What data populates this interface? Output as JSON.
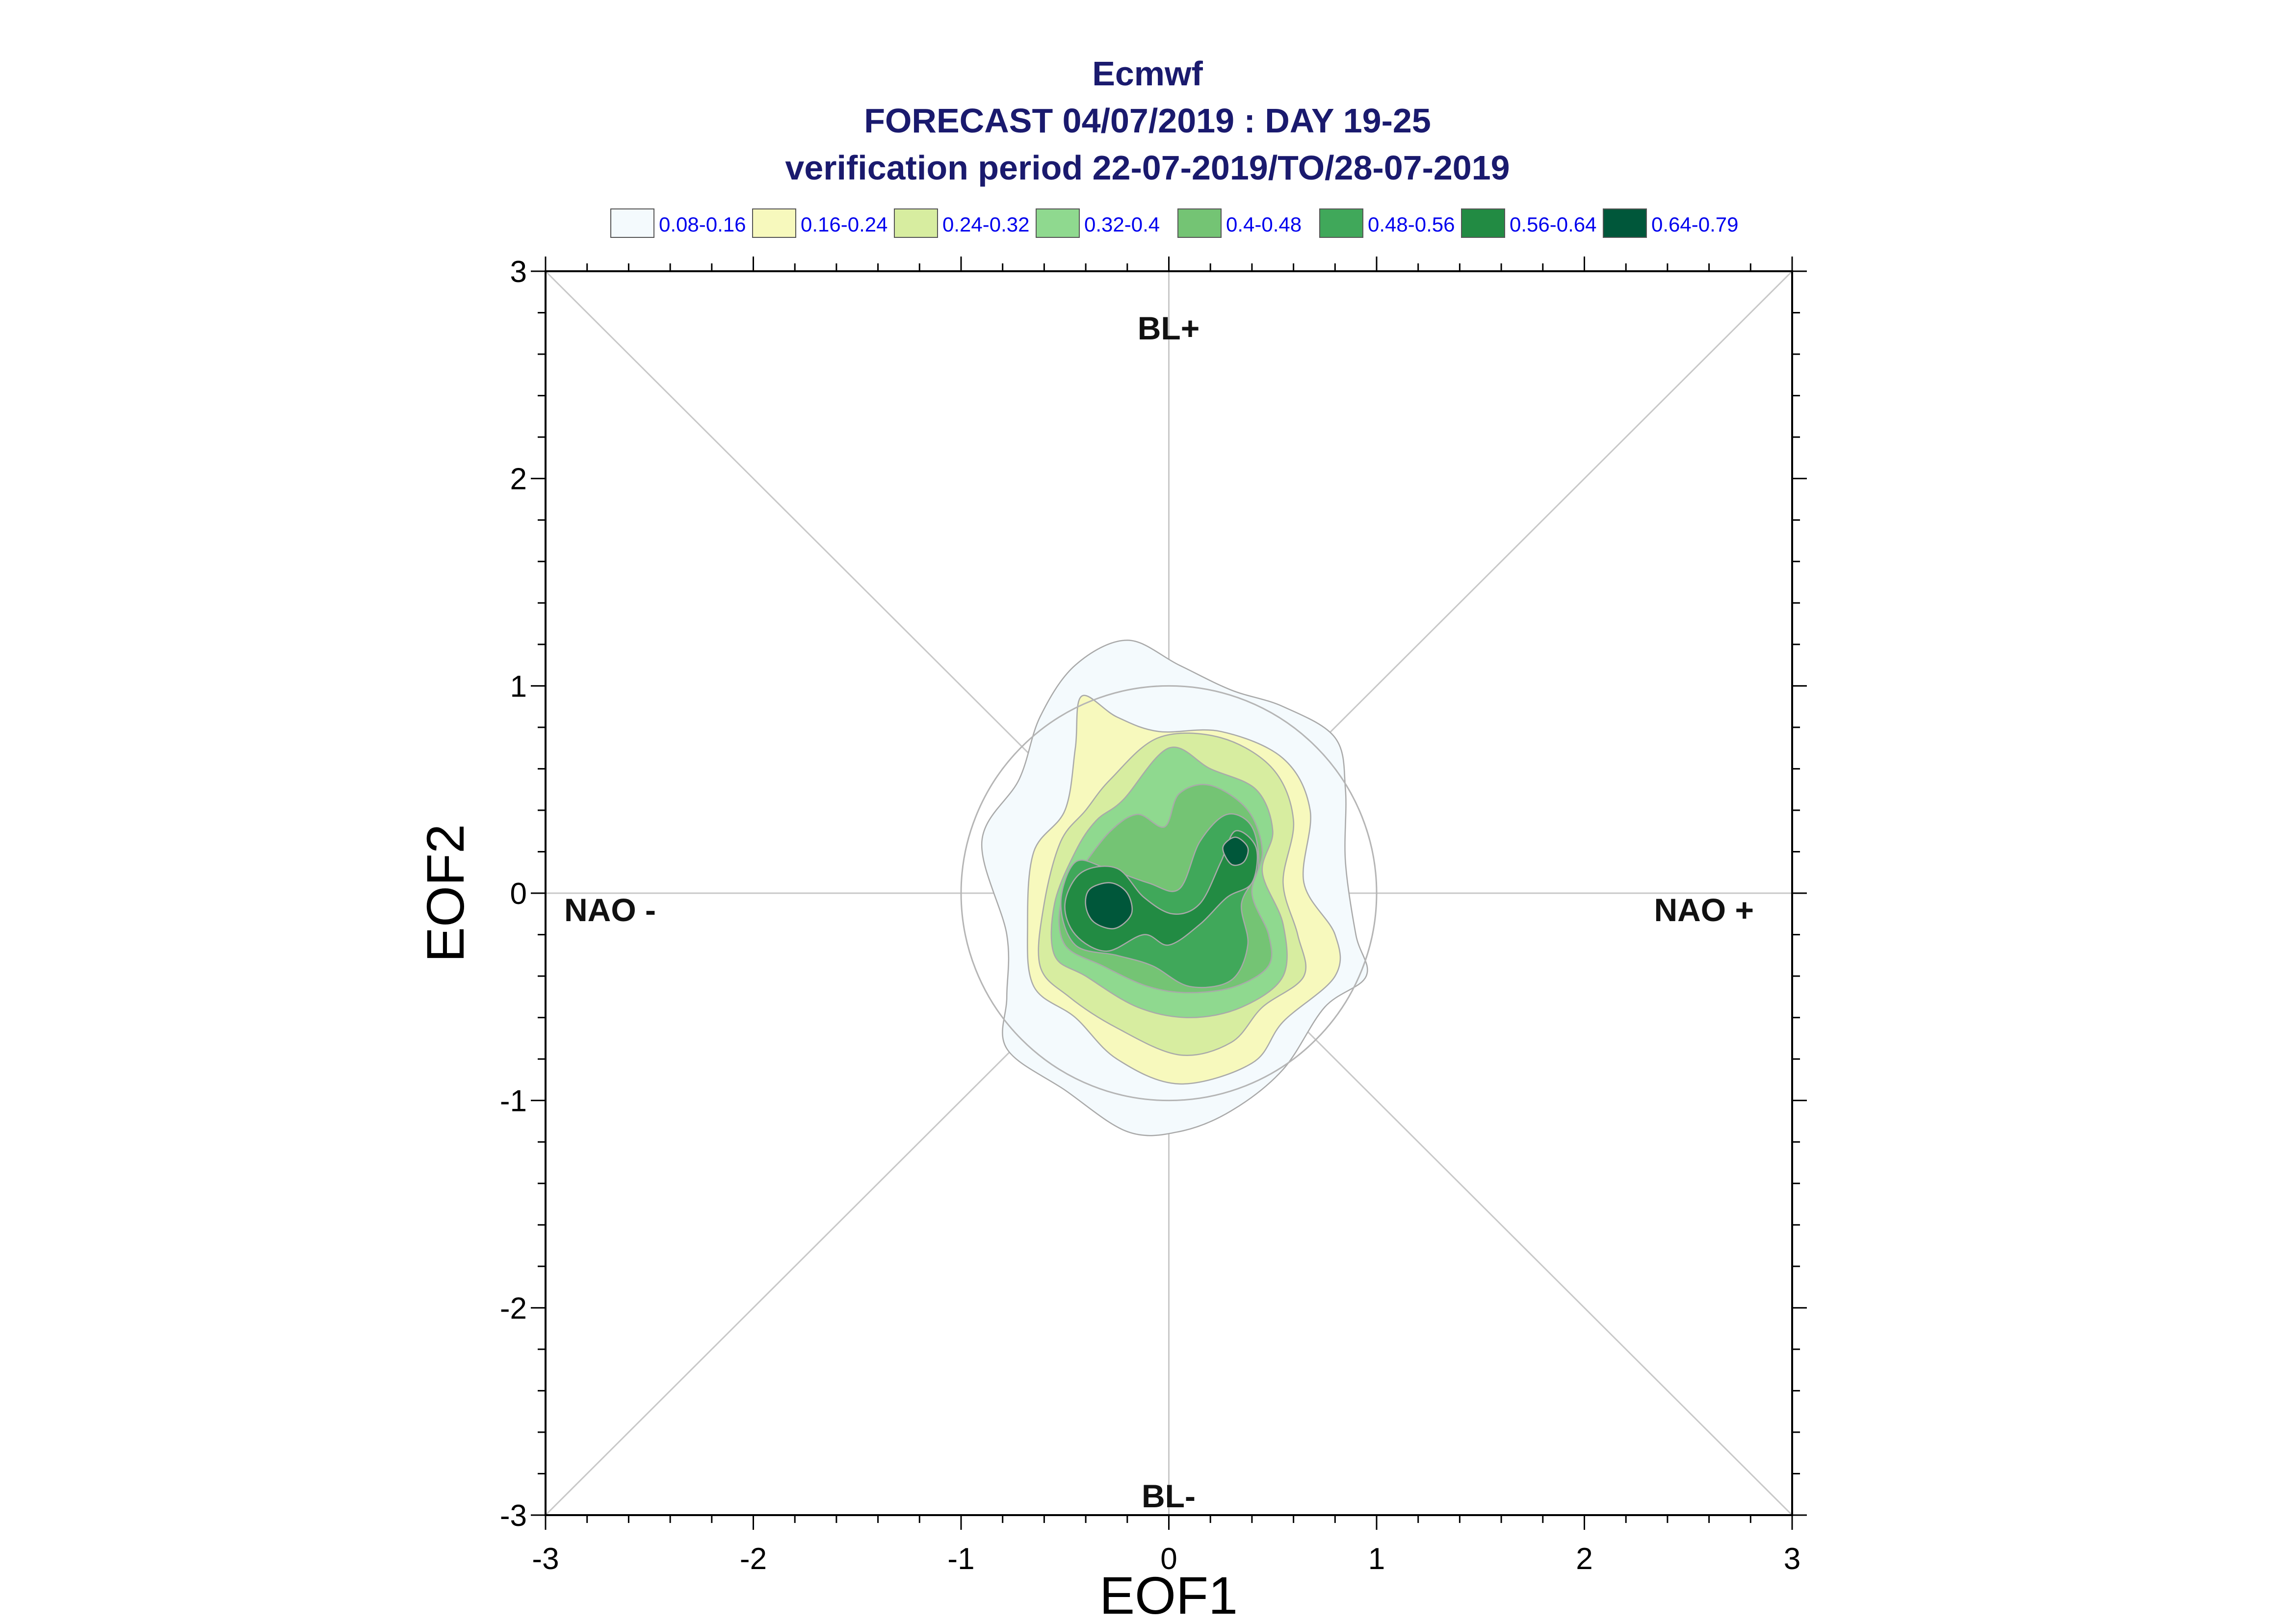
{
  "chart_data": {
    "type": "contour",
    "title_lines": [
      "Ecmwf",
      "FORECAST 04/07/2019 : DAY 19-25",
      "verification period 22-07-2019/TO/28-07-2019"
    ],
    "xlabel": "EOF1",
    "ylabel": "EOF2",
    "xlim": [
      -3,
      3
    ],
    "ylim": [
      -3,
      3
    ],
    "x_ticks": [
      "-3",
      "-2",
      "-1",
      "0",
      "1",
      "2",
      "3"
    ],
    "y_ticks": [
      "-3",
      "-2",
      "-1",
      "0",
      "1",
      "2",
      "3"
    ],
    "legend": [
      {
        "label": "0.08-0.16",
        "color": "#f4fafd"
      },
      {
        "label": "0.16-0.24",
        "color": "#f7f9bd"
      },
      {
        "label": "0.24-0.32",
        "color": "#d7eda0"
      },
      {
        "label": "0.32-0.4",
        "color": "#8fd98f"
      },
      {
        "label": "0.4-0.48",
        "color": "#74c474"
      },
      {
        "label": "0.48-0.56",
        "color": "#40a85a"
      },
      {
        "label": "0.56-0.64",
        "color": "#228b43"
      },
      {
        "label": "0.64-0.79",
        "color": "#00573a"
      }
    ],
    "regime_labels": {
      "top": "BL+",
      "bottom": "BL-",
      "left": "NAO -",
      "right": "NAO +"
    },
    "reference_circle_radius": 1.0,
    "density_levels": [
      {
        "range": "0.08-0.16",
        "color": "#f4fafd",
        "points": [
          [
            -0.45,
            1.1
          ],
          [
            -0.2,
            1.22
          ],
          [
            0.05,
            1.1
          ],
          [
            0.3,
            0.98
          ],
          [
            0.55,
            0.9
          ],
          [
            0.8,
            0.75
          ],
          [
            0.85,
            0.5
          ],
          [
            0.85,
            0.15
          ],
          [
            0.9,
            -0.2
          ],
          [
            0.95,
            -0.4
          ],
          [
            0.75,
            -0.55
          ],
          [
            0.55,
            -0.85
          ],
          [
            0.3,
            -1.05
          ],
          [
            0.05,
            -1.15
          ],
          [
            -0.2,
            -1.15
          ],
          [
            -0.5,
            -0.95
          ],
          [
            -0.78,
            -0.75
          ],
          [
            -0.78,
            -0.5
          ],
          [
            -0.78,
            -0.2
          ],
          [
            -0.9,
            0.25
          ],
          [
            -0.72,
            0.55
          ],
          [
            -0.62,
            0.85
          ]
        ]
      },
      {
        "range": "0.16-0.24",
        "color": "#f7f9bd",
        "points": [
          [
            -0.42,
            0.95
          ],
          [
            -0.25,
            0.85
          ],
          [
            -0.05,
            0.78
          ],
          [
            0.25,
            0.78
          ],
          [
            0.55,
            0.65
          ],
          [
            0.68,
            0.4
          ],
          [
            0.65,
            0.05
          ],
          [
            0.8,
            -0.2
          ],
          [
            0.8,
            -0.4
          ],
          [
            0.55,
            -0.62
          ],
          [
            0.4,
            -0.82
          ],
          [
            0.05,
            -0.92
          ],
          [
            -0.25,
            -0.8
          ],
          [
            -0.45,
            -0.6
          ],
          [
            -0.65,
            -0.45
          ],
          [
            -0.68,
            -0.15
          ],
          [
            -0.65,
            0.2
          ],
          [
            -0.5,
            0.4
          ],
          [
            -0.45,
            0.7
          ]
        ]
      },
      {
        "range": "0.24-0.32",
        "color": "#d7eda0",
        "points": [
          [
            -0.28,
            0.55
          ],
          [
            -0.05,
            0.75
          ],
          [
            0.25,
            0.75
          ],
          [
            0.5,
            0.6
          ],
          [
            0.6,
            0.35
          ],
          [
            0.55,
            0.05
          ],
          [
            0.62,
            -0.2
          ],
          [
            0.65,
            -0.4
          ],
          [
            0.45,
            -0.55
          ],
          [
            0.3,
            -0.72
          ],
          [
            0.05,
            -0.78
          ],
          [
            -0.25,
            -0.65
          ],
          [
            -0.48,
            -0.5
          ],
          [
            -0.62,
            -0.35
          ],
          [
            -0.6,
            -0.05
          ],
          [
            -0.52,
            0.25
          ],
          [
            -0.4,
            0.4
          ]
        ]
      },
      {
        "range": "0.32-0.4",
        "color": "#8fd98f",
        "points": [
          [
            -0.22,
            0.45
          ],
          [
            0.0,
            0.7
          ],
          [
            0.2,
            0.6
          ],
          [
            0.42,
            0.5
          ],
          [
            0.5,
            0.3
          ],
          [
            0.45,
            0.1
          ],
          [
            0.55,
            -0.15
          ],
          [
            0.55,
            -0.4
          ],
          [
            0.35,
            -0.55
          ],
          [
            0.1,
            -0.6
          ],
          [
            -0.15,
            -0.55
          ],
          [
            -0.4,
            -0.4
          ],
          [
            -0.55,
            -0.3
          ],
          [
            -0.55,
            -0.05
          ],
          [
            -0.45,
            0.2
          ],
          [
            -0.35,
            0.35
          ]
        ]
      },
      {
        "range": "0.4-0.48",
        "color": "#74c474",
        "points": [
          [
            -0.28,
            0.3
          ],
          [
            -0.15,
            0.38
          ],
          [
            -0.02,
            0.32
          ],
          [
            0.05,
            0.48
          ],
          [
            0.2,
            0.52
          ],
          [
            0.38,
            0.4
          ],
          [
            0.45,
            0.2
          ],
          [
            0.4,
            0.0
          ],
          [
            0.48,
            -0.2
          ],
          [
            0.48,
            -0.35
          ],
          [
            0.32,
            -0.45
          ],
          [
            0.1,
            -0.48
          ],
          [
            -0.1,
            -0.45
          ],
          [
            -0.32,
            -0.35
          ],
          [
            -0.5,
            -0.25
          ],
          [
            -0.52,
            -0.05
          ],
          [
            -0.42,
            0.12
          ]
        ]
      },
      {
        "range": "0.48-0.56",
        "color": "#40a85a",
        "points": [
          [
            -0.45,
            0.15
          ],
          [
            -0.3,
            0.12
          ],
          [
            -0.1,
            0.05
          ],
          [
            0.05,
            0.02
          ],
          [
            0.15,
            0.25
          ],
          [
            0.28,
            0.38
          ],
          [
            0.4,
            0.32
          ],
          [
            0.43,
            0.12
          ],
          [
            0.35,
            -0.05
          ],
          [
            0.38,
            -0.25
          ],
          [
            0.3,
            -0.42
          ],
          [
            0.1,
            -0.45
          ],
          [
            -0.08,
            -0.35
          ],
          [
            -0.25,
            -0.3
          ],
          [
            -0.45,
            -0.25
          ],
          [
            -0.52,
            -0.05
          ]
        ]
      },
      {
        "range": "0.56-0.64",
        "color": "#228b43",
        "points": [
          [
            -0.42,
            0.1
          ],
          [
            -0.25,
            0.12
          ],
          [
            -0.12,
            -0.02
          ],
          [
            0.02,
            -0.1
          ],
          [
            0.15,
            -0.05
          ],
          [
            0.25,
            0.15
          ],
          [
            0.32,
            0.3
          ],
          [
            0.42,
            0.22
          ],
          [
            0.4,
            0.05
          ],
          [
            0.28,
            -0.02
          ],
          [
            0.15,
            -0.15
          ],
          [
            0.0,
            -0.25
          ],
          [
            -0.12,
            -0.2
          ],
          [
            -0.3,
            -0.28
          ],
          [
            -0.45,
            -0.2
          ],
          [
            -0.5,
            -0.05
          ]
        ]
      },
      {
        "range": "0.64-0.79",
        "color": "#00573a",
        "points": [
          [
            -0.38,
            0.02
          ],
          [
            -0.28,
            0.05
          ],
          [
            -0.2,
            0.0
          ],
          [
            -0.18,
            -0.1
          ],
          [
            -0.26,
            -0.17
          ],
          [
            -0.36,
            -0.14
          ],
          [
            -0.4,
            -0.06
          ]
        ]
      },
      {
        "range": "0.64-0.79",
        "color": "#00573a",
        "points": [
          [
            0.26,
            0.22
          ],
          [
            0.32,
            0.27
          ],
          [
            0.38,
            0.22
          ],
          [
            0.36,
            0.15
          ],
          [
            0.3,
            0.14
          ]
        ]
      }
    ]
  }
}
